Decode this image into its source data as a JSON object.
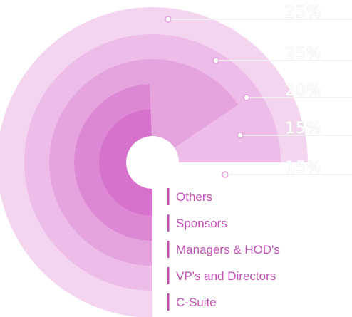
{
  "chart_data": {
    "type": "radial-bar",
    "title": "",
    "series": [
      {
        "name": "C-Suite",
        "value": 25,
        "value_label": "25%",
        "color": "#f4d5f0"
      },
      {
        "name": "VP's and Directors",
        "value": 25,
        "value_label": "25%",
        "color": "#eebce8"
      },
      {
        "name": "Managers & HOD's",
        "value": 20,
        "value_label": "20%",
        "color": "#e6a4df"
      },
      {
        "name": "Sponsors",
        "value": 15,
        "value_label": "15%",
        "color": "#dc88d4"
      },
      {
        "name": "Others",
        "value": 15,
        "value_label": "15%",
        "color": "#d672cc"
      }
    ],
    "legend": {
      "placement": "bottom-right",
      "order": [
        "Others",
        "Sponsors",
        "Managers & HOD's",
        "VP's and Directors",
        "C-Suite"
      ]
    },
    "accent_color": "#c24fb4",
    "leader_color": "#e2a2da"
  }
}
